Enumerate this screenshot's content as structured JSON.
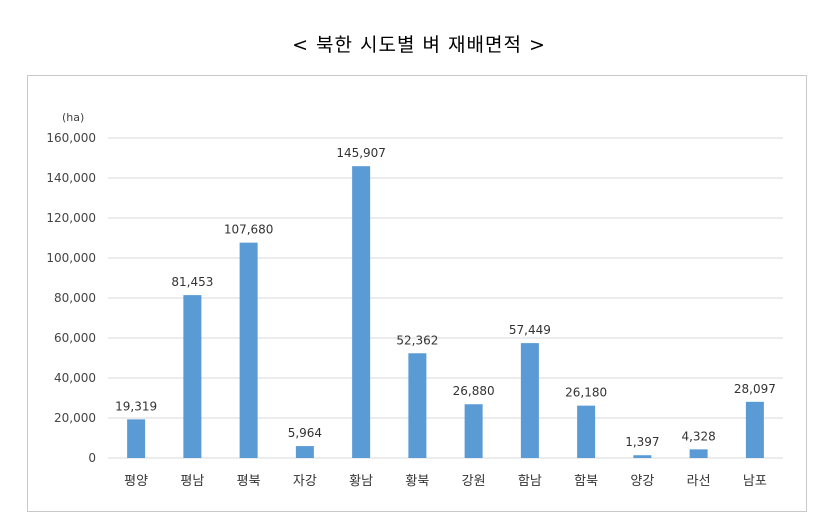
{
  "title": "< 북한 시도별 벼 재배면적 >",
  "chart_data": {
    "type": "bar",
    "title": "< 북한 시도별 벼 재배면적 >",
    "unit_label": "(ha)",
    "xlabel": "",
    "ylabel": "",
    "ylim": [
      0,
      160000
    ],
    "yticks": [
      0,
      20000,
      40000,
      60000,
      80000,
      100000,
      120000,
      140000,
      160000
    ],
    "ytick_labels": [
      "0",
      "20,000",
      "40,000",
      "60,000",
      "80,000",
      "100,000",
      "120,000",
      "140,000",
      "160,000"
    ],
    "categories": [
      "평양",
      "평남",
      "평북",
      "자강",
      "황남",
      "황북",
      "강원",
      "함남",
      "함북",
      "양강",
      "라선",
      "남포"
    ],
    "values": [
      19319,
      81453,
      107680,
      5964,
      145907,
      52362,
      26880,
      57449,
      26180,
      1397,
      4328,
      28097
    ],
    "value_labels": [
      "19,319",
      "81,453",
      "107,680",
      "5,964",
      "145,907",
      "52,362",
      "26,880",
      "57,449",
      "26,180",
      "1,397",
      "4,328",
      "28,097"
    ],
    "grid": true,
    "bar_color": "#5B9BD5",
    "grid_color": "#d9d9d9"
  }
}
